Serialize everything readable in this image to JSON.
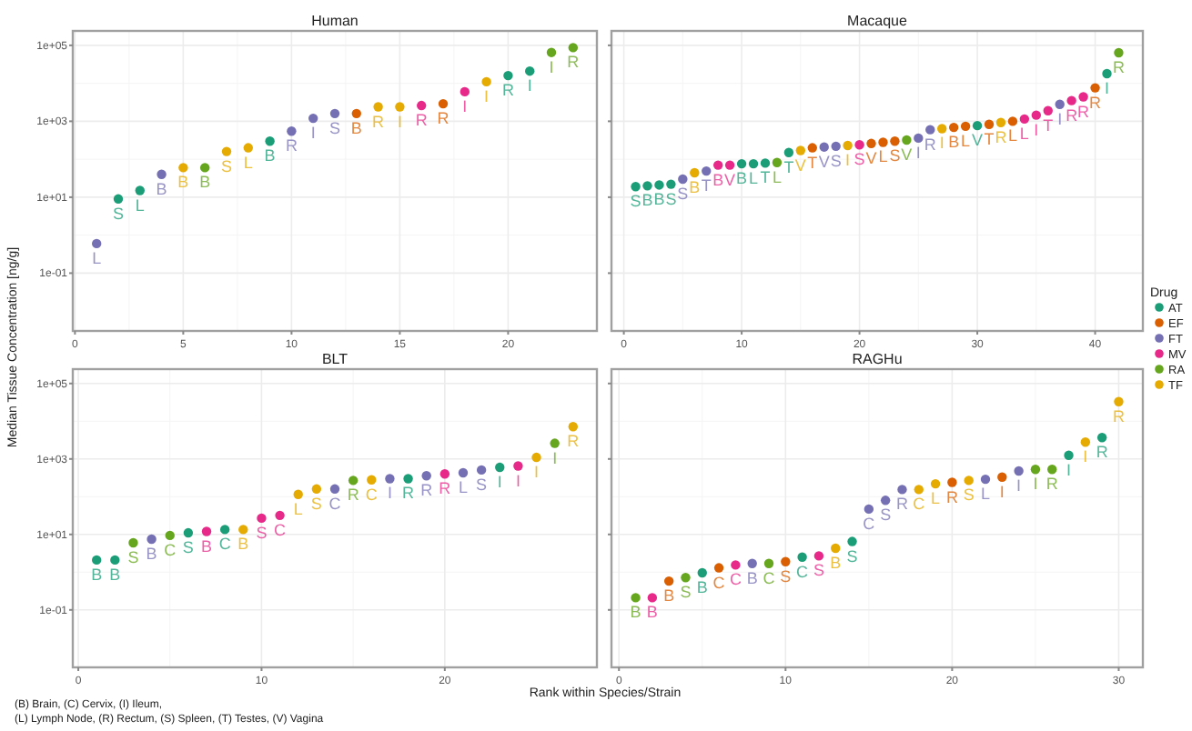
{
  "chart_data": [
    {
      "type": "scatter",
      "title": "Human",
      "log": true,
      "grid": true,
      "marker": "circle",
      "legend": false,
      "xlim": [
        -0.1,
        24.1
      ],
      "xticks": [
        0,
        5,
        10,
        15,
        20
      ],
      "ylim": [
        0.003,
        240000
      ],
      "yticks": [
        {
          "value": 0.1,
          "label": "1e-01"
        },
        {
          "value": 10,
          "label": "1e+01"
        },
        {
          "value": 1000,
          "label": "1e+03"
        },
        {
          "value": 100000,
          "label": "1e+05"
        }
      ],
      "ylabel": "Median Tissue Concentration [ng/g]",
      "series": [
        {
          "color": "#1b9e77",
          "x": [
            2,
            3,
            9,
            20,
            21
          ],
          "values": [
            9,
            15,
            300,
            16000,
            21000
          ],
          "value_labels": [
            "S",
            "L",
            "B",
            "R",
            "I"
          ]
        },
        {
          "color": "#d95f02",
          "x": [
            13,
            17
          ],
          "values": [
            1600,
            2900
          ],
          "value_labels": [
            "B",
            "R"
          ]
        },
        {
          "color": "#7570b3",
          "x": [
            1,
            4,
            10,
            11,
            12
          ],
          "values": [
            0.6,
            40,
            550,
            1200,
            1600
          ],
          "value_labels": [
            "L",
            "B",
            "R",
            "I",
            "S"
          ]
        },
        {
          "color": "#e7298a",
          "x": [
            16,
            18
          ],
          "values": [
            2600,
            6000
          ],
          "value_labels": [
            "R",
            "I"
          ]
        },
        {
          "color": "#66a61e",
          "x": [
            6,
            22,
            23
          ],
          "values": [
            60,
            65000,
            87000
          ],
          "value_labels": [
            "B",
            "I",
            "R"
          ]
        },
        {
          "color": "#e6ab02",
          "x": [
            5,
            7,
            8,
            14,
            15,
            19
          ],
          "values": [
            60,
            160,
            200,
            2400,
            2400,
            11000
          ],
          "value_labels": [
            "B",
            "S",
            "L",
            "R",
            "I",
            "I"
          ]
        }
      ]
    },
    {
      "type": "scatter",
      "title": "Macaque",
      "log": true,
      "grid": true,
      "marker": "circle",
      "legend": "right",
      "legend_title": "Drug",
      "xlim": [
        -1.05,
        44.05
      ],
      "xticks": [
        0,
        10,
        20,
        30,
        40
      ],
      "ylim": [
        0.003,
        240000
      ],
      "yticks": [
        {
          "value": 0.1,
          "label": null
        },
        {
          "value": 10,
          "label": null
        },
        {
          "value": 1000,
          "label": null
        },
        {
          "value": 100000,
          "label": null
        }
      ],
      "tick_labels": "x",
      "series": [
        {
          "name": "AT",
          "color": "#1b9e77",
          "x": [
            1,
            2,
            3,
            4,
            10,
            11,
            12,
            14,
            30,
            41
          ],
          "values": [
            19,
            20,
            21,
            22,
            76,
            76,
            79,
            150,
            770,
            18000
          ],
          "value_labels": [
            "S",
            "B",
            "B",
            "S",
            "B",
            "L",
            "T",
            "T",
            "V",
            "I"
          ]
        },
        {
          "name": "EF",
          "color": "#d95f02",
          "x": [
            16,
            21,
            22,
            23,
            28,
            29,
            31,
            33,
            40
          ],
          "values": [
            200,
            260,
            280,
            300,
            690,
            740,
            830,
            1000,
            7600
          ],
          "value_labels": [
            "T",
            "V",
            "L",
            "S",
            "B",
            "L",
            "T",
            "L",
            "R"
          ]
        },
        {
          "name": "FT",
          "color": "#7570b3",
          "x": [
            5,
            7,
            17,
            18,
            25,
            26,
            37
          ],
          "values": [
            30,
            49,
            210,
            220,
            360,
            600,
            2800
          ],
          "value_labels": [
            "S",
            "T",
            "V",
            "S",
            "I",
            "R",
            "I"
          ]
        },
        {
          "name": "MV",
          "color": "#e7298a",
          "x": [
            8,
            9,
            20,
            34,
            35,
            36,
            38,
            39
          ],
          "values": [
            70,
            70,
            240,
            1150,
            1450,
            1900,
            3500,
            4400
          ],
          "value_labels": [
            "B",
            "V",
            "S",
            "L",
            "I",
            "T",
            "R",
            "R"
          ]
        },
        {
          "name": "RA",
          "color": "#66a61e",
          "x": [
            13,
            24,
            42
          ],
          "values": [
            82,
            320,
            64000
          ],
          "value_labels": [
            "L",
            "V",
            "R"
          ]
        },
        {
          "name": "TF",
          "color": "#e6ab02",
          "x": [
            6,
            15,
            19,
            27,
            32
          ],
          "values": [
            44,
            170,
            230,
            640,
            930
          ],
          "value_labels": [
            "B",
            "V",
            "I",
            "I",
            "R"
          ]
        }
      ]
    },
    {
      "type": "scatter",
      "title": "BLT",
      "log": true,
      "grid": true,
      "marker": "circle",
      "legend": false,
      "xlim": [
        -0.3,
        28.3
      ],
      "xticks": [
        0,
        10,
        20
      ],
      "ylim": [
        0.003,
        240000
      ],
      "yticks": [
        {
          "value": 0.1,
          "label": "1e-01"
        },
        {
          "value": 10,
          "label": "1e+01"
        },
        {
          "value": 1000,
          "label": "1e+03"
        },
        {
          "value": 100000,
          "label": "1e+05"
        }
      ],
      "xlabel": "Rank within Species/Strain",
      "annotations": [
        "(B) Brain, (C) Cervix, (I) Ileum,",
        "(L) Lymph Node, (R) Rectum, (S) Spleen, (T) Testes, (V) Vagina"
      ],
      "series": [
        {
          "color": "#1b9e77",
          "x": [
            1,
            2,
            6,
            8,
            18,
            23
          ],
          "values": [
            2.1,
            2.1,
            11,
            13.5,
            300,
            600
          ],
          "value_labels": [
            "B",
            "B",
            "S",
            "C",
            "R",
            "I"
          ]
        },
        {
          "color": "#7570b3",
          "x": [
            4,
            14,
            17,
            19,
            21,
            22
          ],
          "values": [
            7.5,
            160,
            300,
            360,
            430,
            510
          ],
          "value_labels": [
            "B",
            "C",
            "I",
            "R",
            "L",
            "S"
          ]
        },
        {
          "color": "#e7298a",
          "x": [
            7,
            10,
            11,
            20,
            24
          ],
          "values": [
            12,
            27,
            32,
            400,
            650
          ],
          "value_labels": [
            "B",
            "S",
            "C",
            "R",
            "I"
          ]
        },
        {
          "color": "#66a61e",
          "x": [
            3,
            5,
            15,
            26
          ],
          "values": [
            6,
            9.4,
            270,
            2600
          ],
          "value_labels": [
            "S",
            "C",
            "R",
            "I"
          ]
        },
        {
          "color": "#e6ab02",
          "x": [
            9,
            12,
            13,
            16,
            25,
            27
          ],
          "values": [
            13.5,
            115,
            160,
            280,
            1100,
            7200
          ],
          "value_labels": [
            "B",
            "L",
            "S",
            "C",
            "I",
            "R"
          ]
        }
      ]
    },
    {
      "type": "scatter",
      "title": "RAGHu",
      "log": true,
      "grid": true,
      "marker": "circle",
      "legend": false,
      "xlim": [
        -0.45,
        31.45
      ],
      "xticks": [
        0,
        10,
        20,
        30
      ],
      "ylim": [
        0.003,
        240000
      ],
      "yticks": [
        {
          "value": 0.1,
          "label": null
        },
        {
          "value": 10,
          "label": null
        },
        {
          "value": 1000,
          "label": null
        },
        {
          "value": 100000,
          "label": null
        }
      ],
      "tick_labels": "x",
      "series": [
        {
          "color": "#1b9e77",
          "x": [
            5,
            11,
            14,
            27,
            29
          ],
          "values": [
            0.96,
            2.5,
            6.5,
            1250,
            3700
          ],
          "value_labels": [
            "B",
            "C",
            "S",
            "I",
            "R"
          ]
        },
        {
          "color": "#d95f02",
          "x": [
            3,
            6,
            10,
            20,
            23
          ],
          "values": [
            0.58,
            1.3,
            1.9,
            240,
            330
          ],
          "value_labels": [
            "B",
            "C",
            "S",
            "R",
            "I"
          ]
        },
        {
          "color": "#7570b3",
          "x": [
            8,
            15,
            16,
            17,
            22,
            24
          ],
          "values": [
            1.7,
            47,
            80,
            155,
            290,
            480
          ],
          "value_labels": [
            "B",
            "C",
            "S",
            "R",
            "L",
            "I"
          ]
        },
        {
          "color": "#e7298a",
          "x": [
            2,
            7,
            12
          ],
          "values": [
            0.21,
            1.55,
            2.7
          ],
          "value_labels": [
            "B",
            "C",
            "S"
          ]
        },
        {
          "color": "#66a61e",
          "x": [
            1,
            4,
            9,
            25,
            26
          ],
          "values": [
            0.21,
            0.72,
            1.7,
            530,
            530
          ],
          "value_labels": [
            "B",
            "S",
            "C",
            "I",
            "R"
          ]
        },
        {
          "color": "#e6ab02",
          "x": [
            13,
            18,
            19,
            21,
            28,
            30
          ],
          "values": [
            4.3,
            155,
            220,
            270,
            2800,
            33000
          ],
          "value_labels": [
            "B",
            "C",
            "L",
            "S",
            "I",
            "R"
          ]
        }
      ]
    }
  ]
}
